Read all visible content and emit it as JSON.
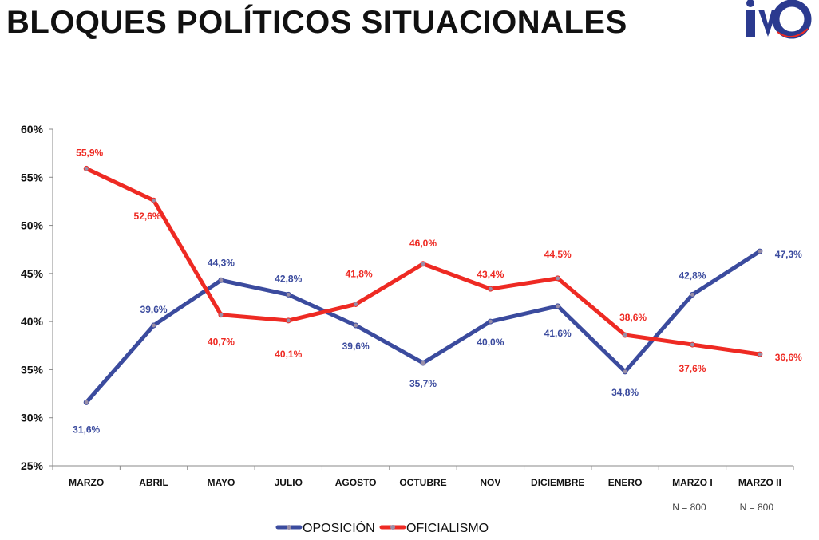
{
  "header": {
    "title": "BLOQUES POLÍTICOS SITUACIONALES",
    "logo_text": "IVO"
  },
  "colors": {
    "oposicion": "#3B4B9E",
    "oficialismo": "#EE2A23",
    "axis": "#888888",
    "text": "#111111"
  },
  "chart_data": {
    "type": "line",
    "title": "",
    "xlabel": "",
    "ylabel": "",
    "ylim": [
      25,
      60
    ],
    "y_ticks": [
      "25%",
      "30%",
      "35%",
      "40%",
      "45%",
      "50%",
      "55%",
      "60%"
    ],
    "grid": false,
    "legend_position": "bottom-center",
    "categories": [
      "MARZO",
      "ABRIL",
      "MAYO",
      "JULIO",
      "AGOSTO",
      "OCTUBRE",
      "NOV",
      "DICIEMBRE",
      "ENERO",
      "MARZO I",
      "MARZO II"
    ],
    "series": [
      {
        "name": "OPOSICIÓN",
        "values": [
          31.6,
          39.6,
          44.3,
          42.8,
          39.6,
          35.7,
          40.0,
          41.6,
          34.8,
          42.8,
          47.3
        ],
        "labels": [
          "31,6%",
          "39,6%",
          "44,3%",
          "42,8%",
          "39,6%",
          "35,7%",
          "40,0%",
          "41,6%",
          "34,8%",
          "42,8%",
          "47,3%"
        ]
      },
      {
        "name": "OFICIALISMO",
        "values": [
          55.9,
          52.6,
          40.7,
          40.1,
          41.8,
          46.0,
          43.4,
          44.5,
          38.6,
          37.6,
          36.6
        ],
        "labels": [
          "55,9%",
          "52,6%",
          "40,7%",
          "40,1%",
          "41,8%",
          "46,0%",
          "43,4%",
          "44,5%",
          "38,6%",
          "37,6%",
          "36,6%"
        ]
      }
    ],
    "sample_notes": [
      "",
      "",
      "",
      "",
      "",
      "",
      "",
      "",
      "",
      "N = 800",
      "N = 800"
    ]
  }
}
